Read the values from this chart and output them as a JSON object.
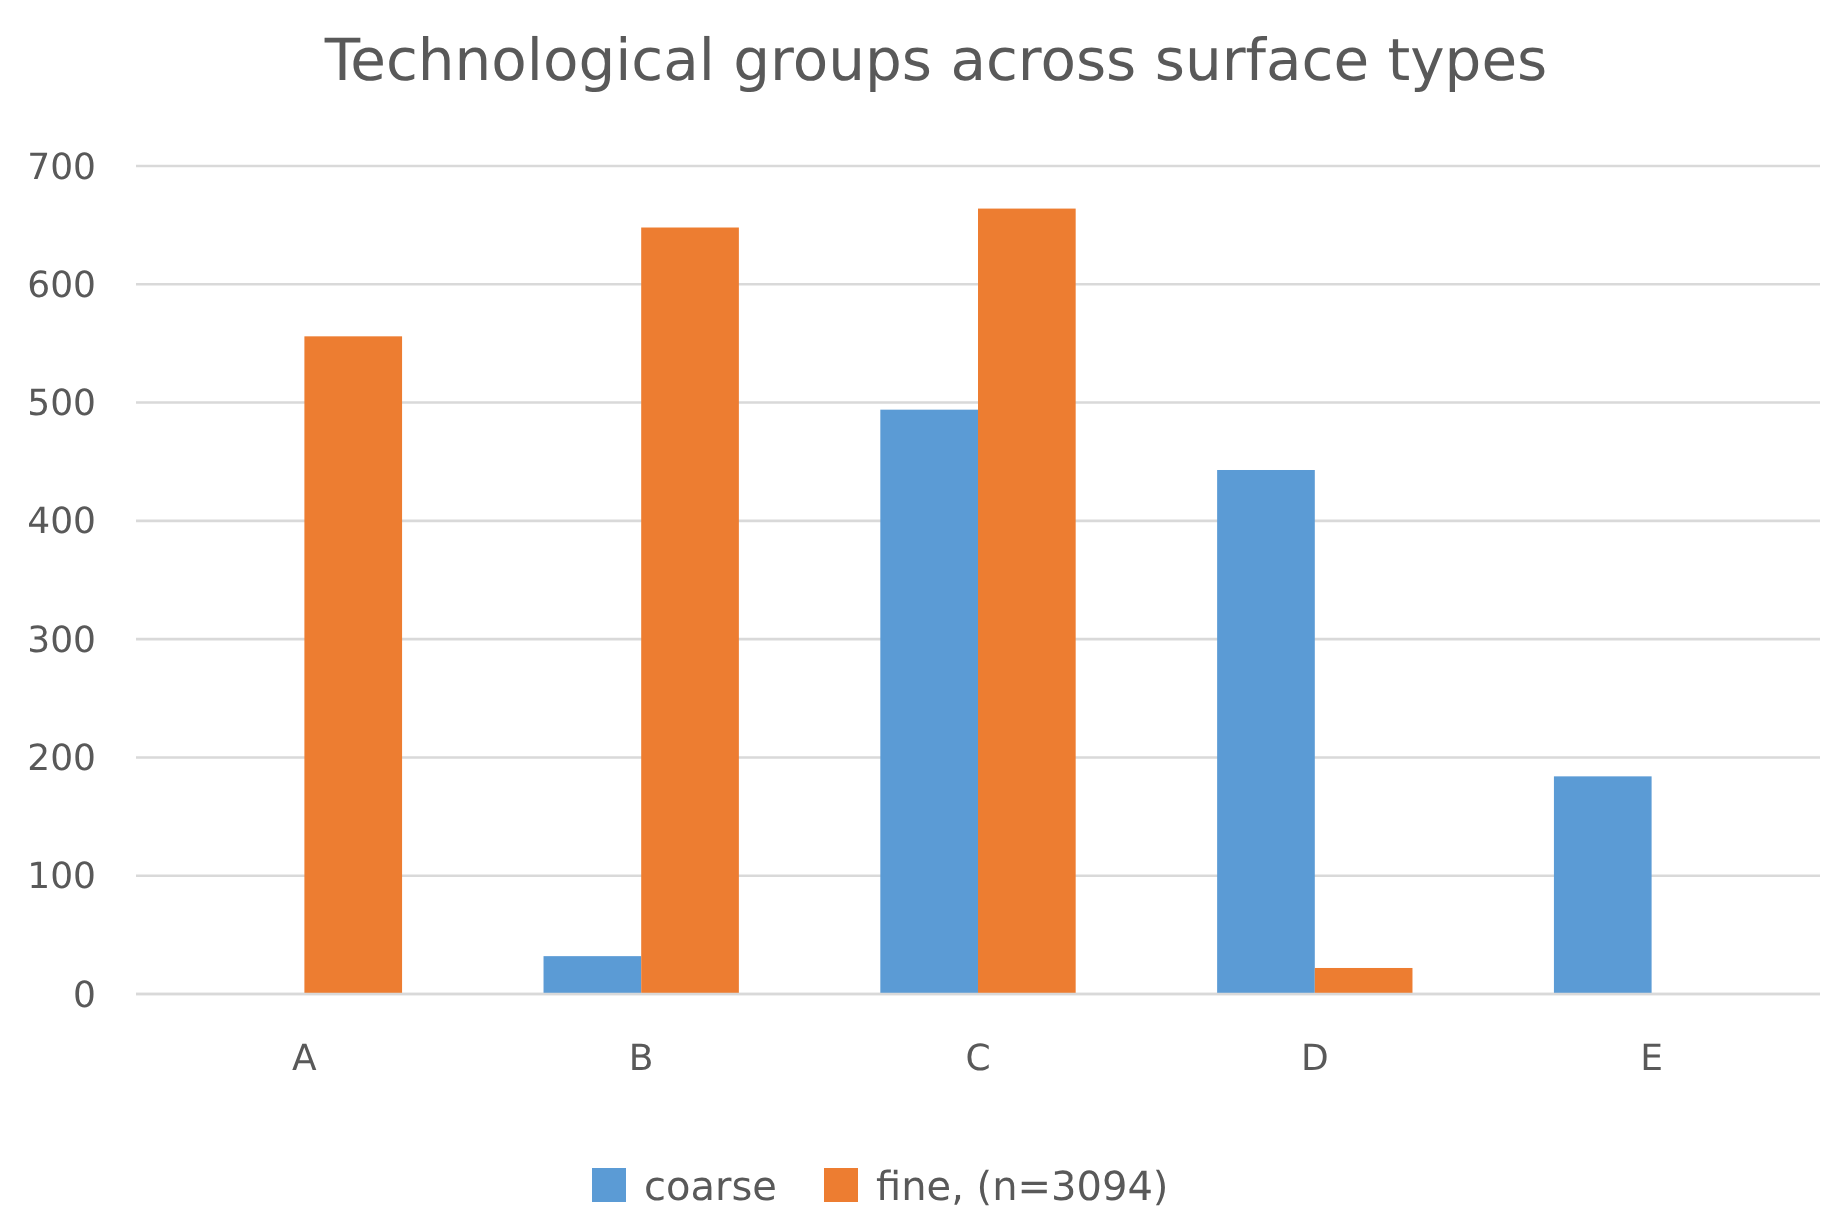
{
  "chart_data": {
    "type": "bar",
    "title": "Technological groups across surface types",
    "categories": [
      "A",
      "B",
      "C",
      "D",
      "E"
    ],
    "series": [
      {
        "name": "coarse",
        "color": "#5b9bd5",
        "values": [
          0,
          32,
          494,
          443,
          184
        ]
      },
      {
        "name": "fine, (n=3094)",
        "color": "#ed7d31",
        "values": [
          556,
          648,
          664,
          22,
          0
        ]
      }
    ],
    "ylim": [
      0,
      700
    ],
    "yticks": [
      0,
      100,
      200,
      300,
      400,
      500,
      600,
      700
    ],
    "grid": "y",
    "legend": "bottom"
  }
}
